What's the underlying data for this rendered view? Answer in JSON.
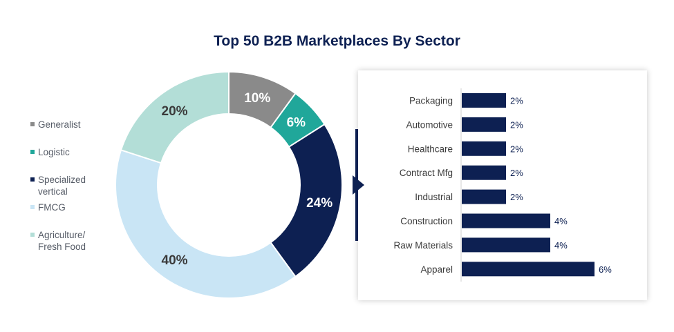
{
  "chart_data": [
    {
      "type": "pie",
      "title": "Top 50 B2B Marketplaces By Sector",
      "slices": [
        {
          "label": "Generalist",
          "value": 10,
          "display": "10%",
          "color": "#8a8a8a",
          "text_color": "#ffffff"
        },
        {
          "label": "Logistic",
          "value": 6,
          "display": "6%",
          "color": "#20a79a",
          "text_color": "#ffffff"
        },
        {
          "label": "Specialized vertical",
          "value": 24,
          "display": "24%",
          "color": "#0d2052",
          "text_color": "#ffffff"
        },
        {
          "label": "FMCG",
          "value": 40,
          "display": "40%",
          "color": "#c9e5f5",
          "text_color": "#3a3a3a"
        },
        {
          "label": "Agriculture/ Fresh Food",
          "value": 20,
          "display": "20%",
          "color": "#b3ded7",
          "text_color": "#3a3a3a"
        }
      ]
    },
    {
      "type": "bar",
      "orientation": "horizontal",
      "categories": [
        "Packaging",
        "Automotive",
        "Healthcare",
        "Contract Mfg",
        "Industrial",
        "Construction",
        "Raw Materials",
        "Apparel"
      ],
      "values": [
        2,
        2,
        2,
        2,
        2,
        4,
        4,
        6
      ],
      "value_labels": [
        "2%",
        "2%",
        "2%",
        "2%",
        "2%",
        "4%",
        "4%",
        "6%"
      ],
      "bar_color": "#0d2052"
    }
  ]
}
